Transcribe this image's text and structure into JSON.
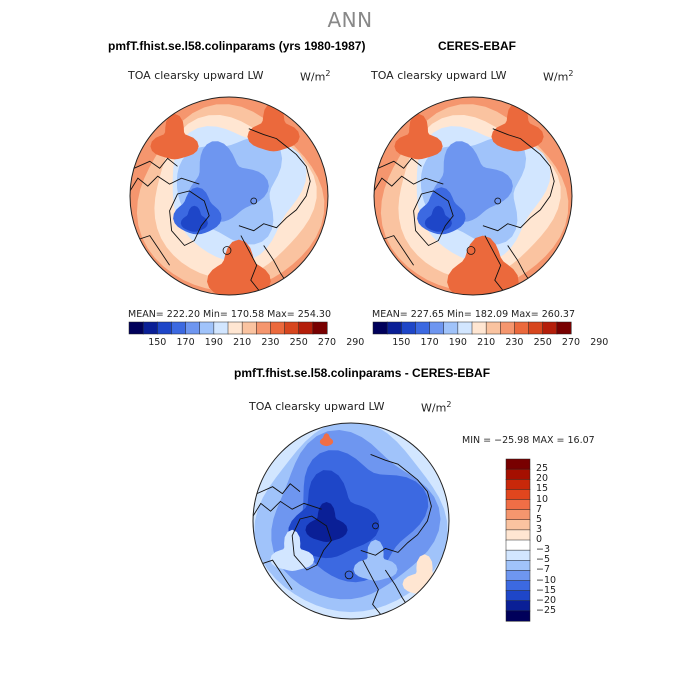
{
  "figure": {
    "suptitle": "ANN",
    "colors": {
      "coast": "#111111",
      "border": "#222222",
      "neutral": "#ffffff"
    }
  },
  "chart_data": [
    {
      "type": "heatmap",
      "projection": "north-polar-stereographic",
      "title": "pmfT.fhist.se.l58.colinparams (yrs 1980-1987)",
      "variable": "TOA clearsky upward LW",
      "units_base": "W/m",
      "units_exp": "2",
      "stats": "MEAN= 222.20   Min= 170.58   Max= 254.30",
      "colorbar": {
        "ticks": [
          "150",
          "170",
          "190",
          "210",
          "230",
          "250",
          "270",
          "290"
        ],
        "colors": [
          "#00005a",
          "#0a1f96",
          "#1e46c8",
          "#3c69e1",
          "#6e96f0",
          "#a0c3fa",
          "#d2e6ff",
          "#ffe6d2",
          "#fac3a0",
          "#f5966e",
          "#eb693c",
          "#d7461e",
          "#b41e0a",
          "#780000"
        ]
      }
    },
    {
      "type": "heatmap",
      "projection": "north-polar-stereographic",
      "title": "CERES-EBAF",
      "variable": "TOA clearsky upward LW",
      "units_base": "W/m",
      "units_exp": "2",
      "stats": "MEAN= 227.65   Min= 182.09   Max= 260.37",
      "colorbar": {
        "ticks": [
          "150",
          "170",
          "190",
          "210",
          "230",
          "250",
          "270",
          "290"
        ],
        "colors": [
          "#00005a",
          "#0a1f96",
          "#1e46c8",
          "#3c69e1",
          "#6e96f0",
          "#a0c3fa",
          "#d2e6ff",
          "#ffe6d2",
          "#fac3a0",
          "#f5966e",
          "#eb693c",
          "#d7461e",
          "#b41e0a",
          "#780000"
        ]
      }
    },
    {
      "type": "heatmap",
      "projection": "north-polar-stereographic",
      "title": "pmfT.fhist.se.l58.colinparams - CERES-EBAF",
      "variable": "TOA clearsky upward LW",
      "units_base": "W/m",
      "units_exp": "2",
      "stats": "MIN = −25.98 MAX =  16.07",
      "colorbar": {
        "orientation": "vertical",
        "ticks": [
          "25",
          "20",
          "15",
          "10",
          "7",
          "5",
          "3",
          "0",
          "−3",
          "−5",
          "−7",
          "−10",
          "−15",
          "−20",
          "−25"
        ],
        "colors": [
          "#780000",
          "#a50f00",
          "#c8280a",
          "#e1461e",
          "#f06e46",
          "#f5966e",
          "#fac3a0",
          "#ffe6d2",
          "#ffffff",
          "#d2e6ff",
          "#a0c3fa",
          "#6e96f0",
          "#3c69e1",
          "#1e46c8",
          "#0a1f96",
          "#00005a"
        ]
      }
    }
  ]
}
